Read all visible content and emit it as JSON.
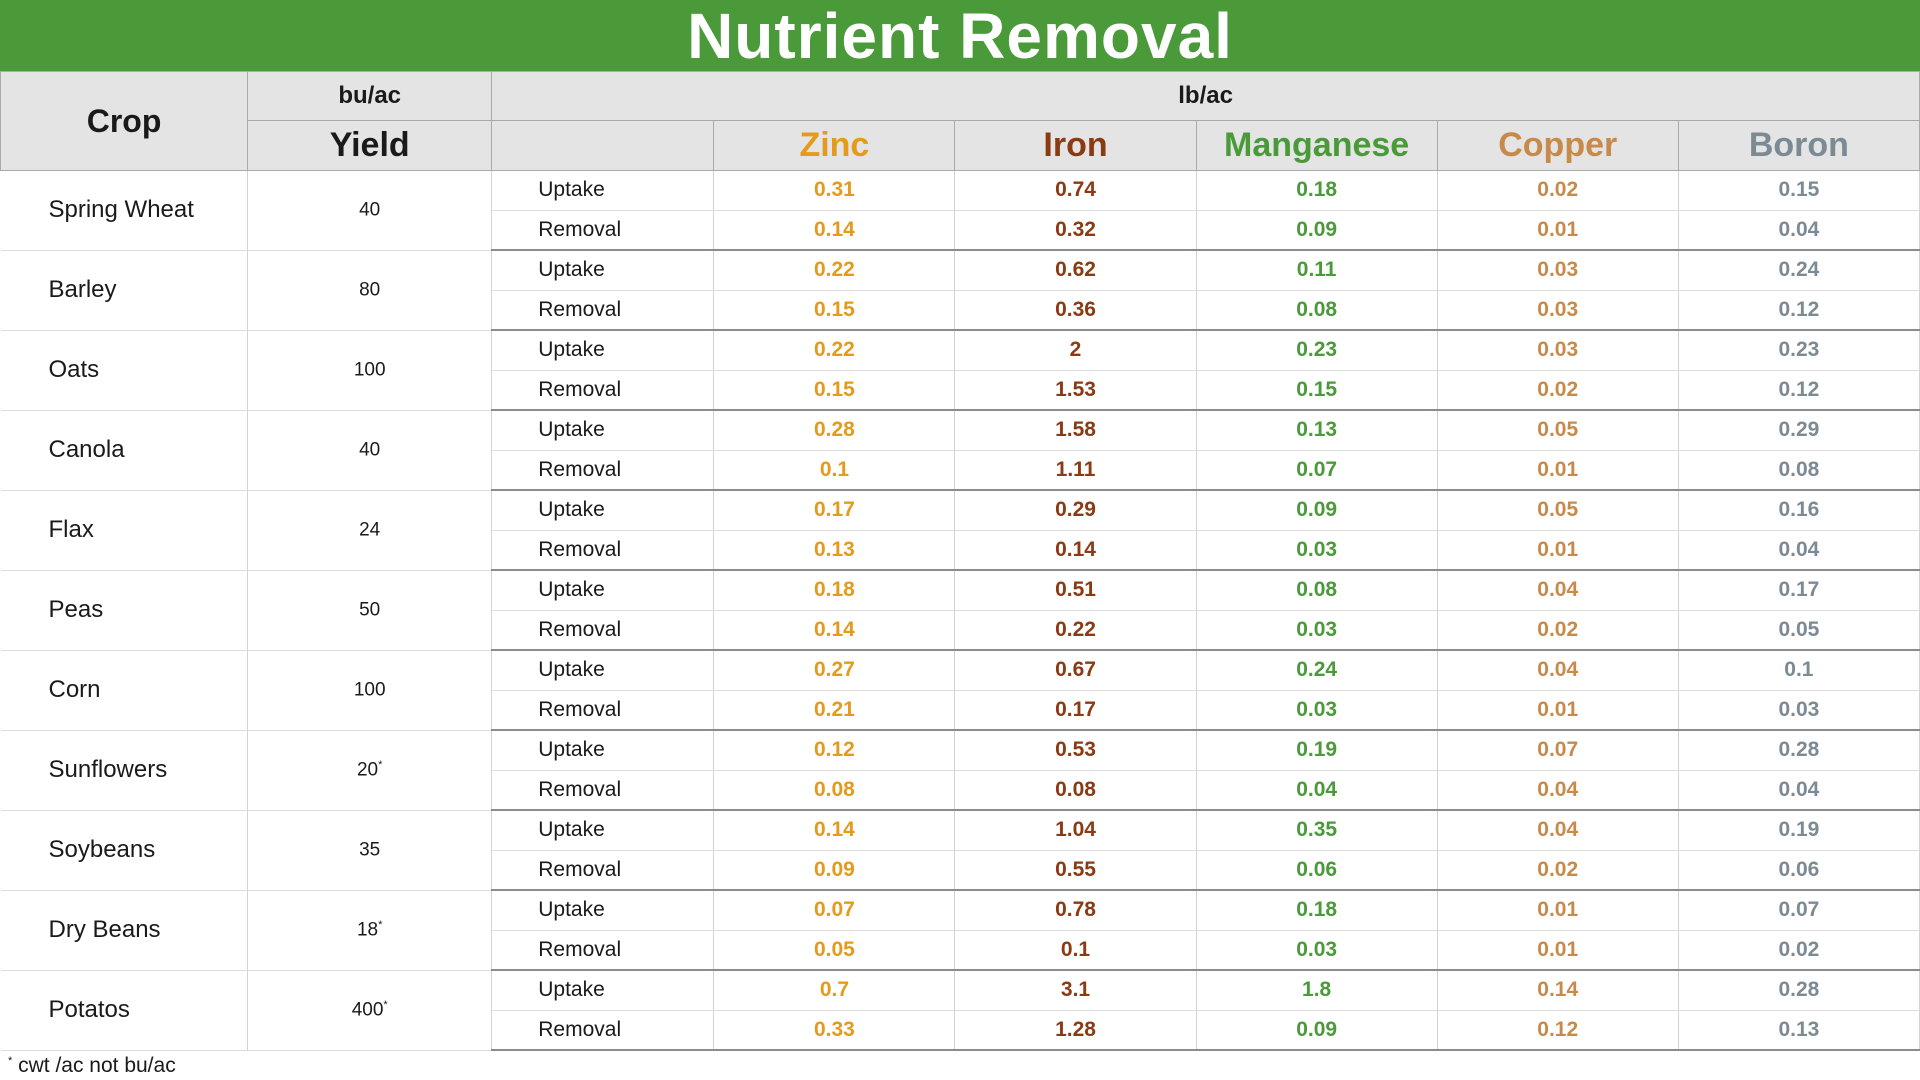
{
  "title": "Nutrient Removal",
  "header": {
    "crop": "Crop",
    "yield_unit": "bu/ac",
    "yield": "Yield",
    "nutrient_unit": "lb/ac",
    "nutrients": [
      "Zinc",
      "Iron",
      "Manganese",
      "Copper",
      "Boron"
    ]
  },
  "colors": {
    "title_bg": "#4a9a3a",
    "zinc": "#e69a1a",
    "iron": "#8b3a12",
    "manganese": "#4a9a3a",
    "copper": "#c88a4a",
    "boron": "#7c8a94"
  },
  "rows": [
    {
      "crop": "Spring Wheat",
      "yield": "40",
      "mark": "",
      "uptake": [
        "0.31",
        "0.74",
        "0.18",
        "0.02",
        "0.15"
      ],
      "removal": [
        "0.14",
        "0.32",
        "0.09",
        "0.01",
        "0.04"
      ]
    },
    {
      "crop": "Barley",
      "yield": "80",
      "mark": "",
      "uptake": [
        "0.22",
        "0.62",
        "0.11",
        "0.03",
        "0.24"
      ],
      "removal": [
        "0.15",
        "0.36",
        "0.08",
        "0.03",
        "0.12"
      ]
    },
    {
      "crop": "Oats",
      "yield": "100",
      "mark": "",
      "uptake": [
        "0.22",
        "2",
        "0.23",
        "0.03",
        "0.23"
      ],
      "removal": [
        "0.15",
        "1.53",
        "0.15",
        "0.02",
        "0.12"
      ]
    },
    {
      "crop": "Canola",
      "yield": "40",
      "mark": "",
      "uptake": [
        "0.28",
        "1.58",
        "0.13",
        "0.05",
        "0.29"
      ],
      "removal": [
        "0.1",
        "1.11",
        "0.07",
        "0.01",
        "0.08"
      ]
    },
    {
      "crop": "Flax",
      "yield": "24",
      "mark": "",
      "uptake": [
        "0.17",
        "0.29",
        "0.09",
        "0.05",
        "0.16"
      ],
      "removal": [
        "0.13",
        "0.14",
        "0.03",
        "0.01",
        "0.04"
      ]
    },
    {
      "crop": "Peas",
      "yield": "50",
      "mark": "",
      "uptake": [
        "0.18",
        "0.51",
        "0.08",
        "0.04",
        "0.17"
      ],
      "removal": [
        "0.14",
        "0.22",
        "0.03",
        "0.02",
        "0.05"
      ]
    },
    {
      "crop": "Corn",
      "yield": "100",
      "mark": "",
      "uptake": [
        "0.27",
        "0.67",
        "0.24",
        "0.04",
        "0.1"
      ],
      "removal": [
        "0.21",
        "0.17",
        "0.03",
        "0.01",
        "0.03"
      ]
    },
    {
      "crop": "Sunflowers",
      "yield": "20",
      "mark": "*",
      "uptake": [
        "0.12",
        "0.53",
        "0.19",
        "0.07",
        "0.28"
      ],
      "removal": [
        "0.08",
        "0.08",
        "0.04",
        "0.04",
        "0.04"
      ]
    },
    {
      "crop": "Soybeans",
      "yield": "35",
      "mark": "",
      "uptake": [
        "0.14",
        "1.04",
        "0.35",
        "0.04",
        "0.19"
      ],
      "removal": [
        "0.09",
        "0.55",
        "0.06",
        "0.02",
        "0.06"
      ]
    },
    {
      "crop": "Dry Beans",
      "yield": "18",
      "mark": "*",
      "uptake": [
        "0.07",
        "0.78",
        "0.18",
        "0.01",
        "0.07"
      ],
      "removal": [
        "0.05",
        "0.1",
        "0.03",
        "0.01",
        "0.02"
      ]
    },
    {
      "crop": "Potatos",
      "yield": "400",
      "mark": "*",
      "uptake": [
        "0.7",
        "3.1",
        "1.8",
        "0.14",
        "0.28"
      ],
      "removal": [
        "0.33",
        "1.28",
        "0.09",
        "0.12",
        "0.13"
      ]
    }
  ],
  "labels": {
    "uptake": "Uptake",
    "removal": "Removal"
  },
  "footnote": {
    "mark": "*",
    "text": " cwt /ac not bu/ac"
  }
}
